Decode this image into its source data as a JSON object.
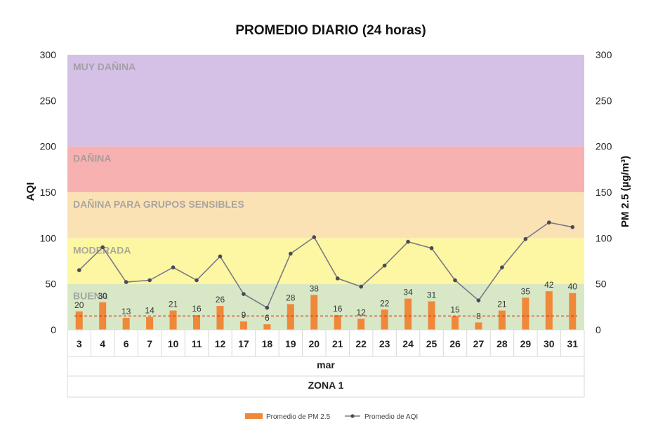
{
  "chart_data": {
    "type": "bar",
    "title": "PROMEDIO DIARIO (24 horas)",
    "ylabel": "AQI",
    "y2label": "PM 2.5 (µg/m³)",
    "ylim": [
      0,
      300
    ],
    "y2lim": [
      0,
      300
    ],
    "yticks": [
      "0",
      "50",
      "100",
      "150",
      "200",
      "250",
      "300"
    ],
    "y2ticks": [
      "0",
      "50",
      "100",
      "150",
      "200",
      "250",
      "300"
    ],
    "xlabel": "mar",
    "group_label": "ZONA 1",
    "categories": [
      "3",
      "4",
      "6",
      "7",
      "10",
      "11",
      "12",
      "17",
      "18",
      "19",
      "20",
      "21",
      "22",
      "23",
      "24",
      "25",
      "26",
      "27",
      "28",
      "29",
      "30",
      "31"
    ],
    "series": [
      {
        "name": "Promedio de PM 2.5",
        "kind": "bar",
        "axis": "right",
        "color": "#f0883a",
        "values": [
          20,
          30,
          13,
          14,
          21,
          16,
          26,
          9,
          6,
          28,
          38,
          16,
          12,
          22,
          34,
          31,
          15,
          8,
          21,
          35,
          42,
          40
        ],
        "labels": [
          "20",
          "30",
          "13",
          "14",
          "21",
          "16",
          "26",
          "9",
          "6",
          "28",
          "38",
          "16",
          "12",
          "22",
          "34",
          "31",
          "15",
          "8",
          "21",
          "35",
          "42",
          "40"
        ]
      },
      {
        "name": "Promedio de AQI",
        "kind": "line",
        "axis": "left",
        "color": "#7a7a86",
        "values": [
          65,
          90,
          52,
          54,
          68,
          54,
          80,
          39,
          24,
          83,
          101,
          56,
          47,
          70,
          96,
          89,
          54,
          32,
          68,
          99,
          117,
          112
        ]
      }
    ],
    "reference_line": {
      "value": 15,
      "axis": "right",
      "color": "#d0301e",
      "style": "dashed"
    },
    "bands": [
      {
        "label": "BUENA",
        "from": 0,
        "to": 50,
        "color": "#d8e8c6"
      },
      {
        "label": "MODERADA",
        "from": 50,
        "to": 100,
        "color": "#fdf6a3"
      },
      {
        "label": "DAÑINA PARA GRUPOS SENSIBLES",
        "from": 100,
        "to": 150,
        "color": "#fbe2b5"
      },
      {
        "label": "DAÑINA",
        "from": 150,
        "to": 200,
        "color": "#f7b1b1"
      },
      {
        "label": "MUY DAÑINA",
        "from": 200,
        "to": 300,
        "color": "#d5c0e6"
      }
    ],
    "legend_position": "bottom",
    "grid": false
  }
}
